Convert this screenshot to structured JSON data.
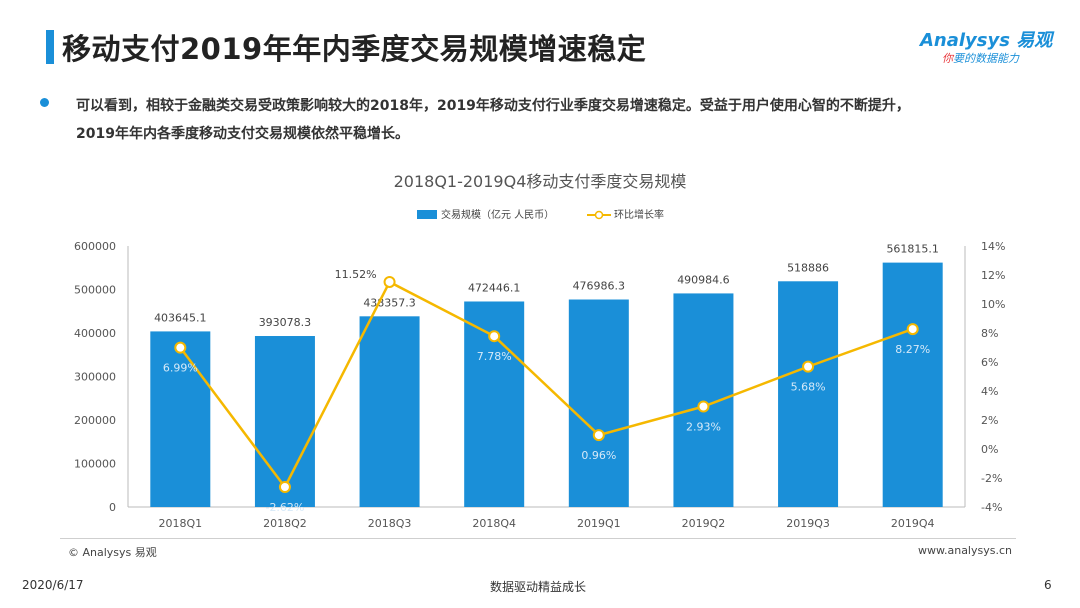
{
  "page": {
    "title": "移动支付2019年年内季度交易规模增速稳定",
    "bullet_line1": "可以看到，相较于金融类交易受政策影响较大的2018年，2019年移动支付行业季度交易增速稳定。受益于用户使用心智的不断提升，",
    "bullet_line2": "2019年年内各季度移动支付交易规模依然平稳增长。"
  },
  "logo": {
    "main": "Analysys 易观",
    "sub_red": "你",
    "sub_blue": "要的数据能力"
  },
  "footer": {
    "copyright": "© Analysys 易观",
    "website": "www.analysys.cn",
    "date": "2020/6/17",
    "slogan": "数据驱动精益成长",
    "page_number": "6"
  },
  "colors": {
    "bar": "#1a8fd8",
    "line": "#f5b800",
    "accent": "#1a8fd8"
  },
  "chart_data": {
    "type": "bar",
    "title": "2018Q1-2019Q4移动支付季度交易规模",
    "categories": [
      "2018Q1",
      "2018Q2",
      "2018Q3",
      "2018Q4",
      "2019Q1",
      "2019Q2",
      "2019Q3",
      "2019Q4"
    ],
    "series": [
      {
        "name": "交易规模（亿元 人民币）",
        "type": "bar",
        "axis": "left",
        "values": [
          403645.1,
          393078.3,
          438357.3,
          472446.1,
          476986.3,
          490984.6,
          518886,
          561815.1
        ],
        "labels": [
          "403645.1",
          "393078.3",
          "438357.3",
          "472446.1",
          "476986.3",
          "490984.6",
          "518886",
          "561815.1"
        ]
      },
      {
        "name": "环比增长率",
        "type": "line",
        "axis": "right",
        "values": [
          6.99,
          -2.62,
          11.52,
          7.78,
          0.96,
          2.93,
          5.68,
          8.27
        ],
        "labels": [
          "6.99%",
          "-2.62%",
          "11.52%",
          "7.78%",
          "0.96%",
          "2.93%",
          "5.68%",
          "8.27%"
        ]
      }
    ],
    "y_left": {
      "min": 0,
      "max": 600000,
      "ticks": [
        "0",
        "100000",
        "200000",
        "300000",
        "400000",
        "500000",
        "600000"
      ]
    },
    "y_right": {
      "min": -4,
      "max": 14,
      "ticks": [
        "-4%",
        "-2%",
        "0%",
        "2%",
        "4%",
        "6%",
        "8%",
        "10%",
        "12%",
        "14%"
      ]
    },
    "legend_position": "top-center",
    "grid": false
  }
}
